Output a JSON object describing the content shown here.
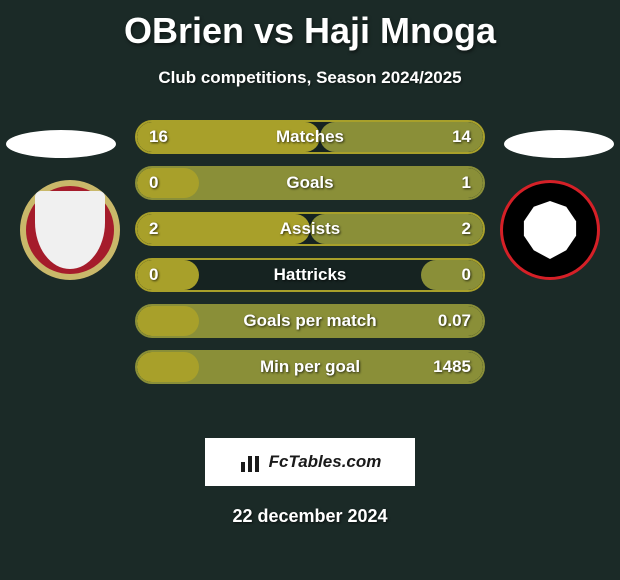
{
  "title": "OBrien vs Haji Mnoga",
  "subtitle": "Club competitions, Season 2024/2025",
  "date": "22 december 2024",
  "brand": "FcTables.com",
  "colors": {
    "background": "#1b2a27",
    "left_team": "#a8a02a",
    "right_team": "#8a8f38",
    "text": "#ffffff"
  },
  "rows": [
    {
      "label": "Matches",
      "left": "16",
      "right": "14",
      "left_pct": 53,
      "right_pct": 47,
      "left_color": "#a8a02a",
      "right_color": "#8a8f38",
      "border": "#a8a02a"
    },
    {
      "label": "Goals",
      "left": "0",
      "right": "1",
      "left_pct": 18,
      "right_pct": 100,
      "left_color": "#a8a02a",
      "right_color": "#8a8f38",
      "border": "#8a8f38"
    },
    {
      "label": "Assists",
      "left": "2",
      "right": "2",
      "left_pct": 50,
      "right_pct": 50,
      "left_color": "#a8a02a",
      "right_color": "#8a8f38",
      "border": "#a8a02a"
    },
    {
      "label": "Hattricks",
      "left": "0",
      "right": "0",
      "left_pct": 18,
      "right_pct": 18,
      "left_color": "#a8a02a",
      "right_color": "#8a8f38",
      "border": "#a8a02a"
    },
    {
      "label": "Goals per match",
      "left": "",
      "right": "0.07",
      "left_pct": 18,
      "right_pct": 100,
      "left_color": "#a8a02a",
      "right_color": "#8a8f38",
      "border": "#8a8f38"
    },
    {
      "label": "Min per goal",
      "left": "",
      "right": "1485",
      "left_pct": 18,
      "right_pct": 100,
      "left_color": "#a8a02a",
      "right_color": "#8a8f38",
      "border": "#8a8f38"
    }
  ]
}
